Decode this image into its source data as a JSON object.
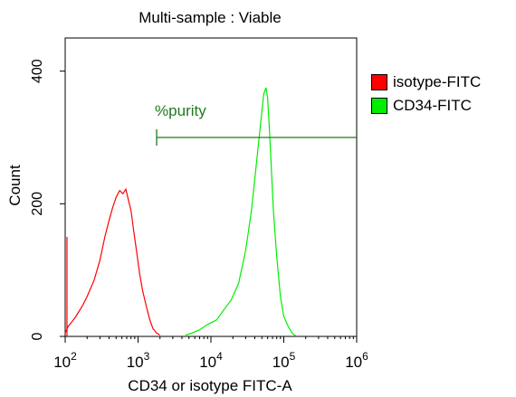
{
  "chart_data": {
    "type": "line",
    "title": "Multi-sample : Viable",
    "xlabel": "CD34 or isotype FITC-A",
    "ylabel": "Count",
    "x_scale": "log",
    "xlim": [
      100,
      1000000
    ],
    "ylim": [
      0,
      450
    ],
    "x_ticks": [
      {
        "base": "10",
        "exp": "2",
        "value": 100
      },
      {
        "base": "10",
        "exp": "3",
        "value": 1000
      },
      {
        "base": "10",
        "exp": "4",
        "value": 10000
      },
      {
        "base": "10",
        "exp": "5",
        "value": 100000
      },
      {
        "base": "10",
        "exp": "6",
        "value": 1000000
      }
    ],
    "y_ticks": [
      {
        "label": "0",
        "value": 0
      },
      {
        "label": "200",
        "value": 200
      },
      {
        "label": "400",
        "value": 400
      }
    ],
    "gate": {
      "label": "%purity",
      "x_start": 1800,
      "x_end": 1000000,
      "y": 300,
      "color": "#1f7a1f"
    },
    "series": [
      {
        "name": "isotype-FITC",
        "color": "#ff0000",
        "x": [
          100,
          105,
          110,
          120,
          140,
          170,
          200,
          250,
          300,
          350,
          400,
          450,
          500,
          560,
          620,
          680,
          740,
          800,
          870,
          950,
          1050,
          1150,
          1300,
          1450,
          1600,
          1800,
          2000
        ],
        "y": [
          5,
          10,
          15,
          20,
          30,
          45,
          60,
          85,
          115,
          150,
          175,
          195,
          210,
          220,
          215,
          222,
          205,
          190,
          160,
          130,
          95,
          70,
          45,
          25,
          12,
          5,
          2
        ]
      },
      {
        "name": "CD34-FITC",
        "color": "#00ee00",
        "x": [
          4500,
          5500,
          7000,
          9000,
          12000,
          15000,
          19000,
          24000,
          30000,
          36000,
          42000,
          48000,
          53000,
          57000,
          60000,
          63000,
          67000,
          72000,
          80000,
          90000,
          100000,
          115000,
          130000,
          145000
        ],
        "y": [
          2,
          5,
          10,
          18,
          25,
          40,
          55,
          80,
          130,
          190,
          260,
          320,
          365,
          375,
          360,
          320,
          260,
          190,
          120,
          60,
          30,
          15,
          5,
          1
        ]
      }
    ]
  }
}
